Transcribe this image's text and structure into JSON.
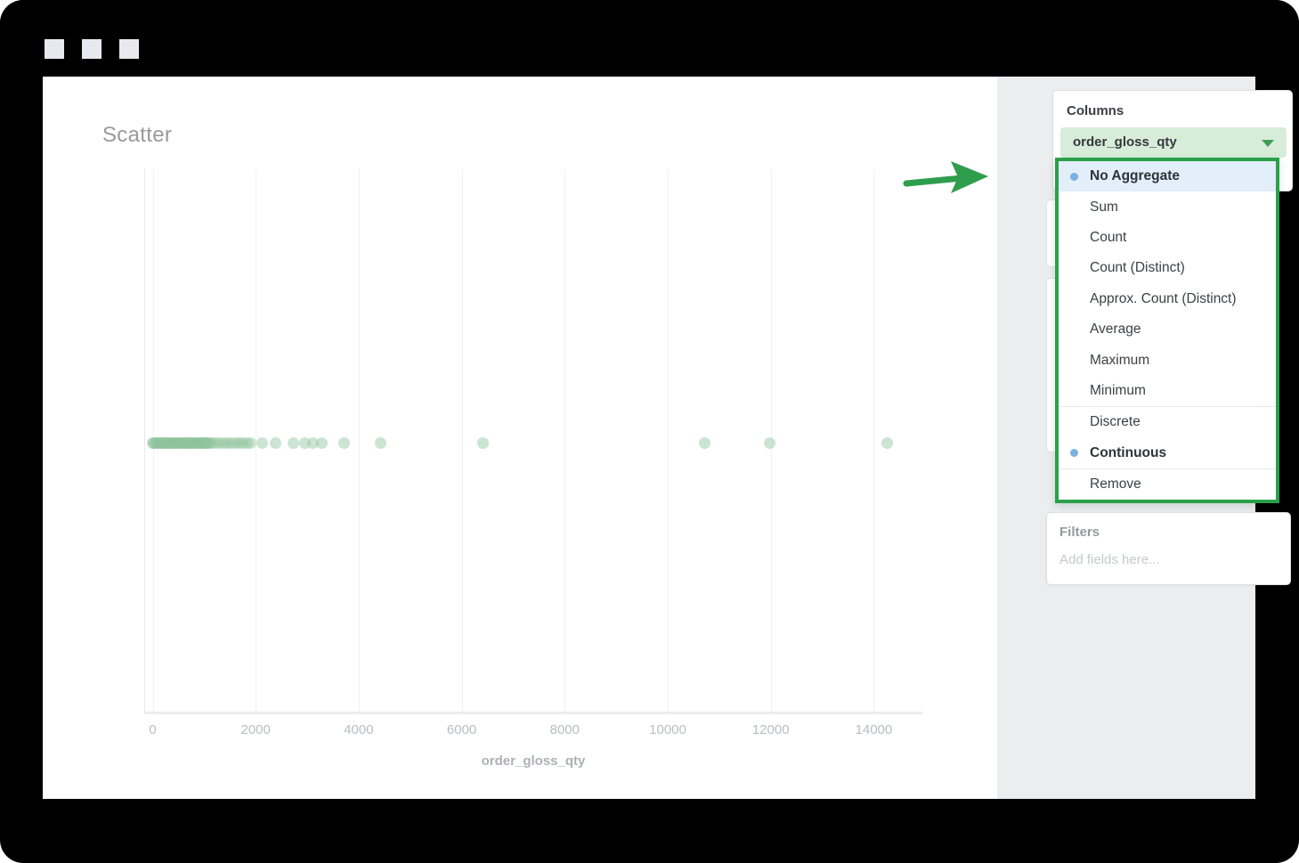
{
  "window": {
    "controls": [
      {
        "name": "window-button-1"
      },
      {
        "name": "window-button-2"
      },
      {
        "name": "window-button-3"
      }
    ]
  },
  "chart": {
    "title": "Scatter",
    "xlabel": "order_gloss_qty"
  },
  "chart_data": {
    "type": "scatter",
    "title": "Scatter",
    "xlabel": "order_gloss_qty",
    "ylabel": "",
    "xlim": [
      0,
      14900
    ],
    "x_ticks": [
      0,
      2000,
      4000,
      6000,
      8000,
      10000,
      12000,
      14000
    ],
    "grid": "vertical",
    "legend": "none",
    "point_color_rgba": [
      142,
      196,
      156,
      0.45
    ],
    "series": [
      {
        "name": "order_gloss_qty",
        "y_constant": 0,
        "x": [
          0,
          25,
          50,
          75,
          100,
          125,
          150,
          175,
          200,
          225,
          250,
          275,
          300,
          325,
          350,
          375,
          400,
          425,
          450,
          475,
          500,
          525,
          550,
          575,
          600,
          625,
          650,
          675,
          700,
          725,
          750,
          775,
          800,
          825,
          850,
          875,
          900,
          925,
          950,
          975,
          1000,
          1025,
          1050,
          1075,
          1100,
          1150,
          1225,
          1300,
          1375,
          1450,
          1525,
          1600,
          1675,
          1750,
          1825,
          1900,
          2130,
          2390,
          2730,
          2960,
          3110,
          3280,
          3720,
          4430,
          6410,
          10720,
          11980,
          14260
        ]
      }
    ]
  },
  "sidebar": {
    "columns_label": "Columns",
    "field": {
      "name": "order_gloss_qty"
    },
    "dropdown": {
      "items": [
        {
          "label": "No Aggregate",
          "selected": true,
          "bold": true,
          "dot": true
        },
        {
          "label": "Sum"
        },
        {
          "label": "Count"
        },
        {
          "label": "Count (Distinct)"
        },
        {
          "label": "Approx. Count (Distinct)"
        },
        {
          "label": "Average"
        },
        {
          "label": "Maximum"
        },
        {
          "label": "Minimum",
          "divider_after": true
        },
        {
          "label": "Discrete"
        },
        {
          "label": "Continuous",
          "bold": true,
          "dot": true,
          "divider_after": true
        },
        {
          "label": "Remove"
        }
      ]
    },
    "filters": {
      "label": "Filters",
      "placeholder": "Add fields here..."
    }
  },
  "colors": {
    "accent_green": "#2aa04a",
    "pill_green": "#d8ecda",
    "selected_row_blue": "#e2eef9",
    "bullet_blue": "#79b1e2",
    "frame_black": "#000000",
    "sidebar_gray": "#ebedef"
  }
}
